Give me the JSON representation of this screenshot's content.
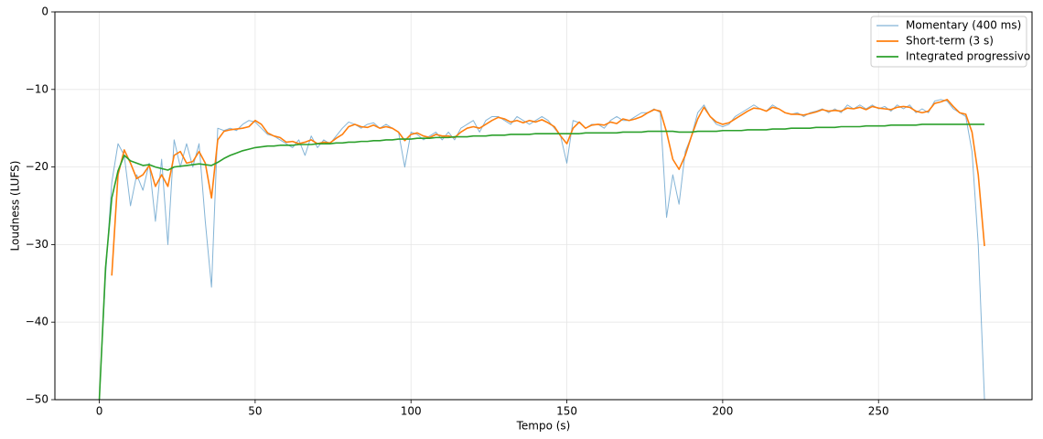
{
  "chart_data": {
    "type": "line",
    "xlabel": "Tempo (s)",
    "ylabel": "Loudness (LUFS)",
    "xlim": [
      -14.25,
      299.25
    ],
    "ylim": [
      -50,
      0
    ],
    "xticks": [
      0,
      50,
      100,
      150,
      200,
      250
    ],
    "yticks": [
      {
        "value": -50,
        "label": "−50"
      },
      {
        "value": -40,
        "label": "−40"
      },
      {
        "value": -30,
        "label": "−30"
      },
      {
        "value": -20,
        "label": "−20"
      },
      {
        "value": -10,
        "label": "−10"
      },
      0
    ],
    "grid": true,
    "legend": "upper right",
    "x": [
      0,
      2,
      4,
      6,
      8,
      10,
      12,
      14,
      16,
      18,
      20,
      22,
      24,
      26,
      28,
      30,
      32,
      34,
      36,
      38,
      40,
      42,
      44,
      46,
      48,
      50,
      52,
      54,
      56,
      58,
      60,
      62,
      64,
      66,
      68,
      70,
      72,
      74,
      76,
      78,
      80,
      82,
      84,
      86,
      88,
      90,
      92,
      94,
      96,
      98,
      100,
      102,
      104,
      106,
      108,
      110,
      112,
      114,
      116,
      118,
      120,
      122,
      124,
      126,
      128,
      130,
      132,
      134,
      136,
      138,
      140,
      142,
      144,
      146,
      148,
      150,
      152,
      154,
      156,
      158,
      160,
      162,
      164,
      166,
      168,
      170,
      172,
      174,
      176,
      178,
      180,
      182,
      184,
      186,
      188,
      190,
      192,
      194,
      196,
      198,
      200,
      202,
      204,
      206,
      208,
      210,
      212,
      214,
      216,
      218,
      220,
      222,
      224,
      226,
      228,
      230,
      232,
      234,
      236,
      238,
      240,
      242,
      244,
      246,
      248,
      250,
      252,
      254,
      256,
      258,
      260,
      262,
      264,
      266,
      268,
      270,
      272,
      274,
      276,
      278,
      280,
      282,
      284
    ],
    "series": [
      {
        "name": "Momentary (400 ms)",
        "color": "#1f77b4",
        "values": [
          -50,
          -34,
          -22,
          -17,
          -18.5,
          -25,
          -21,
          -23,
          -19.5,
          -27,
          -19,
          -30,
          -16.5,
          -20,
          -17,
          -20,
          -17,
          -27,
          -35.5,
          -15,
          -15.3,
          -15,
          -15.3,
          -14.5,
          -14,
          -14.2,
          -15,
          -15.8,
          -16,
          -16.5,
          -17,
          -17.5,
          -16.5,
          -18.5,
          -16,
          -17.5,
          -16.5,
          -17,
          -16,
          -15,
          -14.2,
          -14.5,
          -15,
          -14.5,
          -14.3,
          -15,
          -14.5,
          -15,
          -15.5,
          -20,
          -15.5,
          -15.8,
          -16.5,
          -16,
          -15.5,
          -16.5,
          -15.5,
          -16.5,
          -15,
          -14.5,
          -14,
          -15.5,
          -14,
          -13.5,
          -13.5,
          -14,
          -14.5,
          -13.5,
          -14,
          -14.5,
          -14,
          -13.5,
          -14,
          -15,
          -16,
          -19.5,
          -14,
          -14.3,
          -15,
          -14.5,
          -14.5,
          -15,
          -14,
          -13.5,
          -14,
          -14,
          -13.5,
          -13,
          -13,
          -12.5,
          -13,
          -26.5,
          -21,
          -24.8,
          -18,
          -16,
          -13,
          -12,
          -13.5,
          -14.5,
          -14.8,
          -14.5,
          -13.5,
          -13,
          -12.5,
          -12,
          -12.5,
          -12.8,
          -12,
          -12.5,
          -13,
          -13.2,
          -13,
          -13.5,
          -13,
          -12.8,
          -12.5,
          -13,
          -12.5,
          -13,
          -12,
          -12.5,
          -12,
          -12.5,
          -12,
          -12.5,
          -12.2,
          -12.8,
          -12,
          -12.5,
          -12,
          -13,
          -12.5,
          -13,
          -11.5,
          -11.3,
          -11.5,
          -12.5,
          -13,
          -13.5,
          -18,
          -30,
          -50
        ]
      },
      {
        "name": "Short-term (3 s)",
        "color": "#ff7f0e",
        "values": [
          null,
          null,
          -34,
          -21,
          -17.8,
          -19.5,
          -21.5,
          -21,
          -19.8,
          -22.5,
          -21,
          -22.5,
          -18.5,
          -18,
          -19.5,
          -19.3,
          -18,
          -19.5,
          -24,
          -16.5,
          -15.4,
          -15.2,
          -15.1,
          -15,
          -14.8,
          -14,
          -14.5,
          -15.6,
          -16,
          -16.2,
          -16.8,
          -16.7,
          -17,
          -16.8,
          -16.5,
          -17,
          -16.8,
          -16.9,
          -16.3,
          -15.8,
          -14.8,
          -14.5,
          -14.8,
          -14.9,
          -14.6,
          -15,
          -14.8,
          -15,
          -15.5,
          -16.6,
          -15.8,
          -15.6,
          -16,
          -16.2,
          -15.8,
          -16,
          -16,
          -16.2,
          -15.5,
          -15,
          -14.8,
          -15,
          -14.5,
          -14,
          -13.6,
          -13.8,
          -14.2,
          -14,
          -14.3,
          -14,
          -14.2,
          -13.9,
          -14.3,
          -14.8,
          -16,
          -17,
          -15,
          -14.2,
          -15,
          -14.6,
          -14.5,
          -14.6,
          -14.2,
          -14.4,
          -13.8,
          -14,
          -13.8,
          -13.5,
          -13,
          -12.6,
          -12.8,
          -15.5,
          -19,
          -20.3,
          -18.5,
          -16,
          -13.8,
          -12.3,
          -13.5,
          -14.2,
          -14.5,
          -14.3,
          -13.8,
          -13.3,
          -12.8,
          -12.4,
          -12.5,
          -12.8,
          -12.3,
          -12.5,
          -13,
          -13.2,
          -13.2,
          -13.3,
          -13.1,
          -12.9,
          -12.6,
          -12.8,
          -12.7,
          -12.8,
          -12.4,
          -12.5,
          -12.3,
          -12.6,
          -12.2,
          -12.4,
          -12.5,
          -12.6,
          -12.3,
          -12.2,
          -12.3,
          -12.8,
          -13,
          -12.8,
          -11.8,
          -11.6,
          -11.3,
          -12.2,
          -13,
          -13.2,
          -15.5,
          -21,
          -30.2
        ]
      },
      {
        "name": "Integrated progressivo",
        "color": "#2ca02c",
        "values": [
          -50,
          -33,
          -24,
          -20.5,
          -18.5,
          -19.2,
          -19.5,
          -19.8,
          -19.7,
          -20,
          -20.2,
          -20.4,
          -20,
          -19.9,
          -19.8,
          -19.7,
          -19.6,
          -19.7,
          -19.8,
          -19.4,
          -18.9,
          -18.5,
          -18.2,
          -17.9,
          -17.7,
          -17.5,
          -17.4,
          -17.3,
          -17.3,
          -17.2,
          -17.2,
          -17.2,
          -17.1,
          -17.1,
          -17.1,
          -17,
          -17,
          -17,
          -16.9,
          -16.9,
          -16.8,
          -16.8,
          -16.7,
          -16.7,
          -16.6,
          -16.6,
          -16.5,
          -16.5,
          -16.4,
          -16.4,
          -16.4,
          -16.3,
          -16.3,
          -16.3,
          -16.2,
          -16.2,
          -16.2,
          -16.1,
          -16.1,
          -16.1,
          -16,
          -16,
          -16,
          -15.9,
          -15.9,
          -15.9,
          -15.8,
          -15.8,
          -15.8,
          -15.8,
          -15.7,
          -15.7,
          -15.7,
          -15.7,
          -15.7,
          -15.7,
          -15.7,
          -15.7,
          -15.6,
          -15.6,
          -15.6,
          -15.6,
          -15.6,
          -15.6,
          -15.5,
          -15.5,
          -15.5,
          -15.5,
          -15.4,
          -15.4,
          -15.4,
          -15.4,
          -15.4,
          -15.5,
          -15.5,
          -15.5,
          -15.4,
          -15.4,
          -15.4,
          -15.4,
          -15.3,
          -15.3,
          -15.3,
          -15.3,
          -15.2,
          -15.2,
          -15.2,
          -15.2,
          -15.1,
          -15.1,
          -15.1,
          -15,
          -15,
          -15,
          -15,
          -14.9,
          -14.9,
          -14.9,
          -14.9,
          -14.8,
          -14.8,
          -14.8,
          -14.8,
          -14.7,
          -14.7,
          -14.7,
          -14.7,
          -14.6,
          -14.6,
          -14.6,
          -14.6,
          -14.6,
          -14.5,
          -14.5,
          -14.5,
          -14.5,
          -14.5,
          -14.5,
          -14.5,
          -14.5,
          -14.5,
          -14.5,
          -14.5
        ]
      }
    ]
  }
}
